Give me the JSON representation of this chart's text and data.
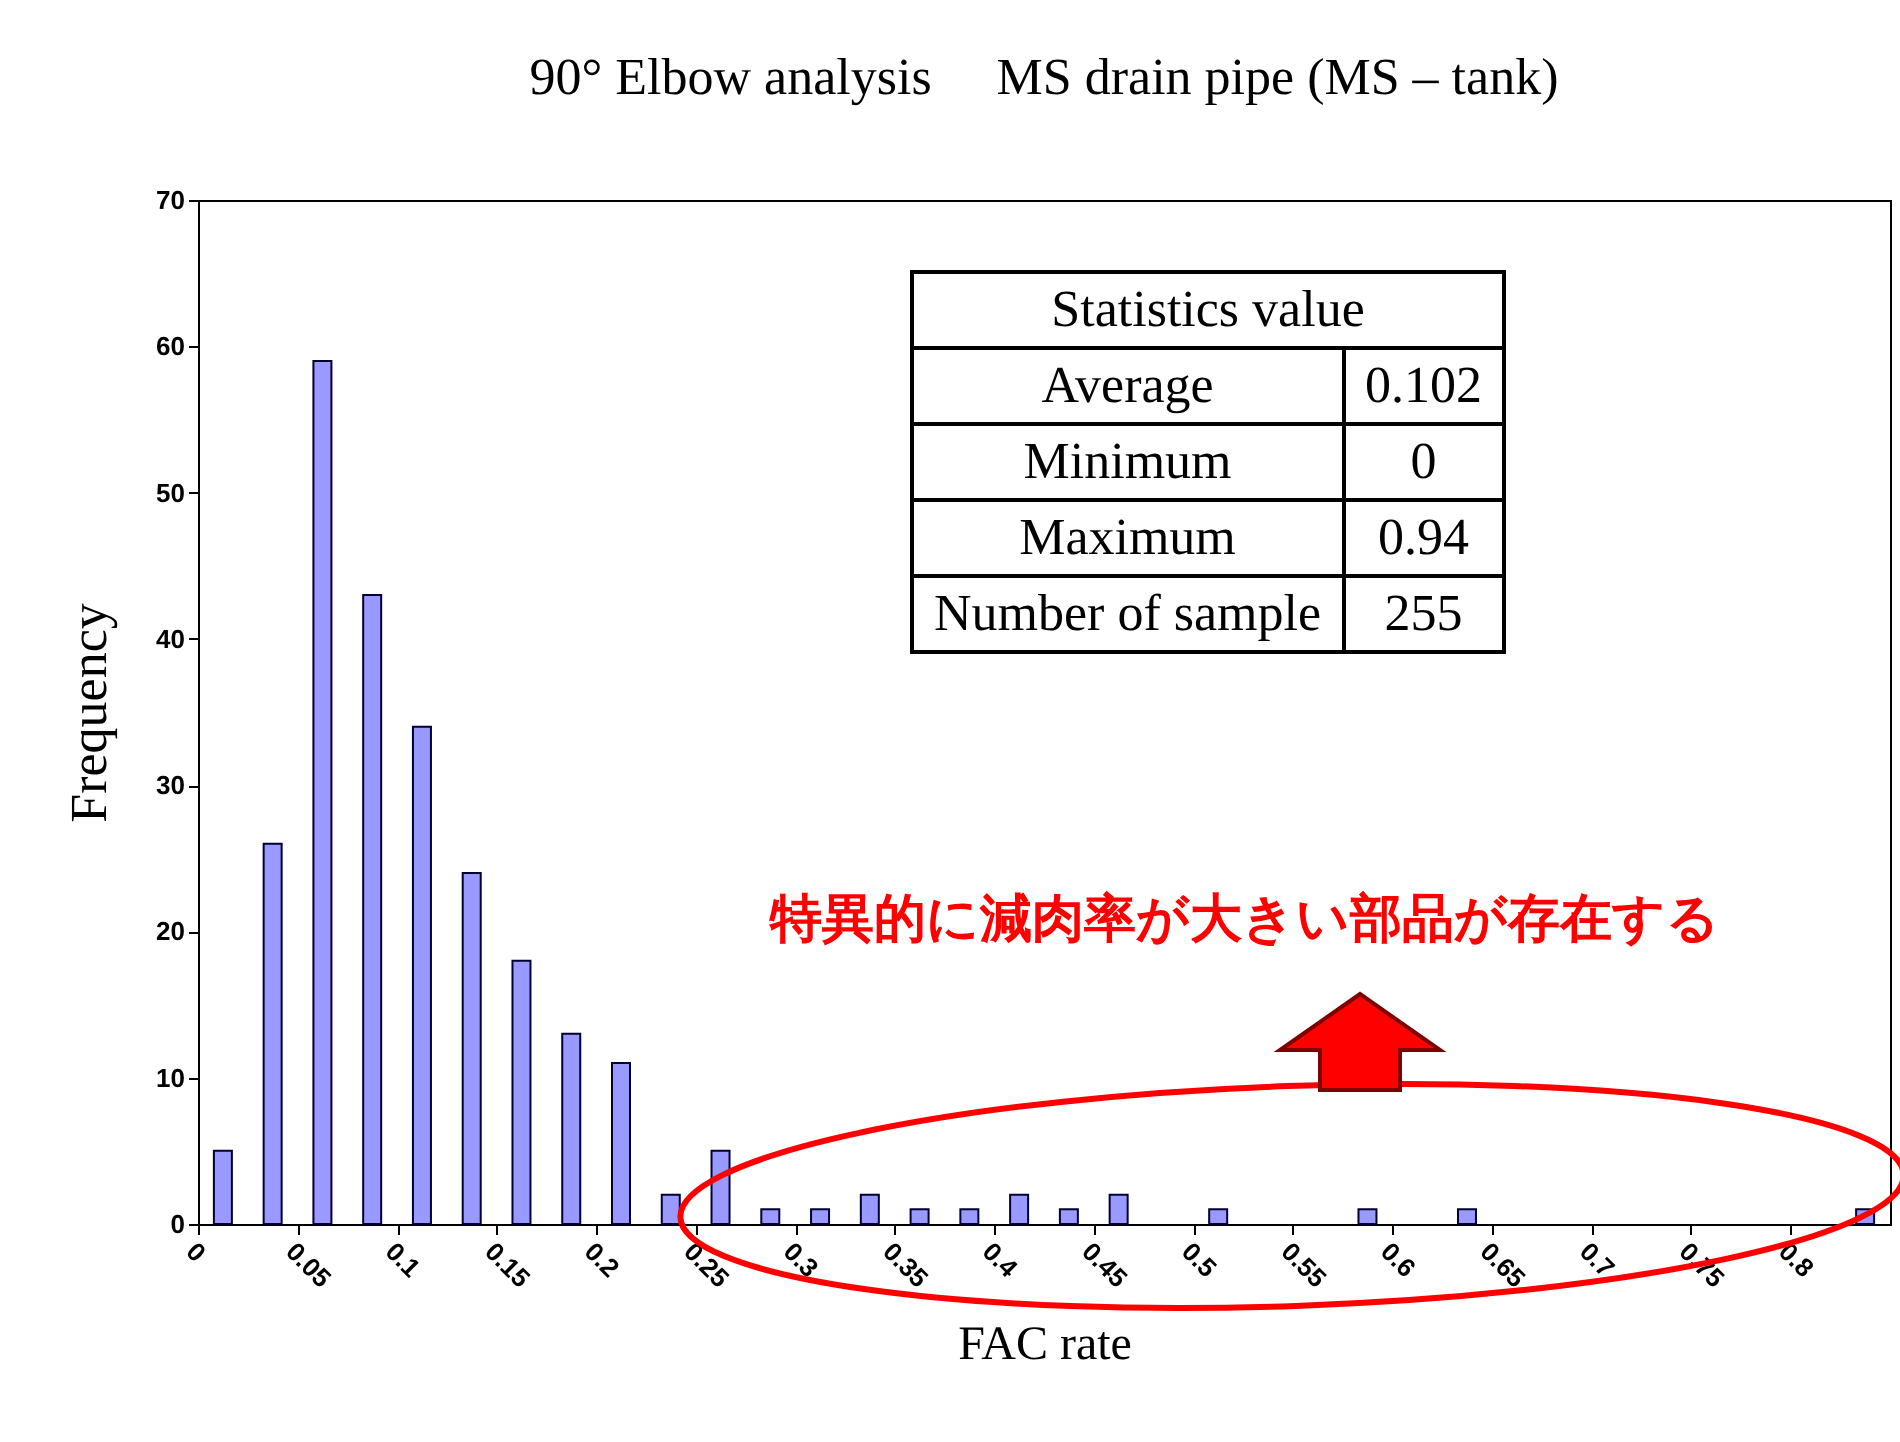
{
  "chart_data": {
    "type": "histogram",
    "title": "90° Elbow analysis　 MS drain pipe (MS – tank)",
    "xlabel": "FAC rate",
    "ylabel": "Frequency",
    "bins": [
      0,
      0.025,
      0.05,
      0.075,
      0.1,
      0.125,
      0.15,
      0.175,
      0.2,
      0.225,
      0.25,
      0.275,
      0.3,
      0.325,
      0.35,
      0.375,
      0.4,
      0.425,
      0.45,
      0.475,
      0.5,
      0.525,
      0.55,
      0.575,
      0.6,
      0.625,
      0.65,
      0.675,
      0.7,
      0.725,
      0.75,
      0.775,
      0.8,
      0.825,
      0.85
    ],
    "values": [
      5,
      26,
      59,
      43,
      34,
      24,
      18,
      13,
      11,
      2,
      5,
      1,
      1,
      2,
      1,
      1,
      2,
      1,
      2,
      0,
      1,
      0,
      0,
      1,
      0,
      1,
      0,
      0,
      0,
      0,
      0,
      0,
      0,
      1
    ],
    "color": "#9999ff",
    "xlim": [
      0,
      0.85
    ],
    "xticks": [
      0,
      0.05,
      0.1,
      0.15,
      0.2,
      0.25,
      0.3,
      0.35,
      0.4,
      0.45,
      0.5,
      0.55,
      0.6,
      0.65,
      0.7,
      0.75,
      0.8
    ],
    "ylim": [
      0,
      70
    ],
    "yticks": [
      0,
      10,
      20,
      30,
      40,
      50,
      60,
      70
    ],
    "grid": false,
    "annotations": [
      "Statistics value",
      "Average",
      "0.102",
      "Minimum",
      "0",
      "Maximum",
      "0.94",
      "Number of sample",
      "255",
      "特異的に減肉率が大きい部品が存在する"
    ]
  }
}
